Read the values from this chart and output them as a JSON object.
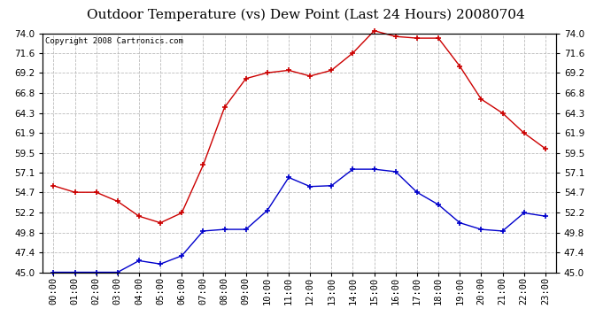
{
  "title": "Outdoor Temperature (vs) Dew Point (Last 24 Hours) 20080704",
  "copyright": "Copyright 2008 Cartronics.com",
  "x_labels": [
    "00:00",
    "01:00",
    "02:00",
    "03:00",
    "04:00",
    "05:00",
    "06:00",
    "07:00",
    "08:00",
    "09:00",
    "10:00",
    "11:00",
    "12:00",
    "13:00",
    "14:00",
    "15:00",
    "16:00",
    "17:00",
    "18:00",
    "19:00",
    "20:00",
    "21:00",
    "22:00",
    "23:00"
  ],
  "temp_values": [
    55.5,
    54.7,
    54.7,
    53.6,
    51.8,
    51.0,
    52.2,
    58.0,
    65.0,
    68.5,
    69.2,
    69.5,
    68.8,
    69.5,
    71.6,
    74.3,
    73.6,
    73.4,
    73.4,
    70.0,
    66.0,
    64.3,
    61.9,
    60.0
  ],
  "dew_values": [
    45.0,
    45.0,
    45.0,
    45.0,
    46.4,
    46.0,
    47.0,
    50.0,
    50.2,
    50.2,
    52.5,
    56.5,
    55.4,
    55.5,
    57.5,
    57.5,
    57.2,
    54.7,
    53.2,
    51.0,
    50.2,
    50.0,
    52.2,
    51.8
  ],
  "temp_color": "#cc0000",
  "dew_color": "#0000cc",
  "marker": "+",
  "ylim_min": 45.0,
  "ylim_max": 74.0,
  "yticks": [
    45.0,
    47.4,
    49.8,
    52.2,
    54.7,
    57.1,
    59.5,
    61.9,
    64.3,
    66.8,
    69.2,
    71.6,
    74.0
  ],
  "background_color": "#ffffff",
  "plot_bg_color": "#ffffff",
  "grid_color": "#bbbbbb",
  "title_fontsize": 11,
  "copyright_fontsize": 6.5,
  "tick_fontsize": 7.5
}
